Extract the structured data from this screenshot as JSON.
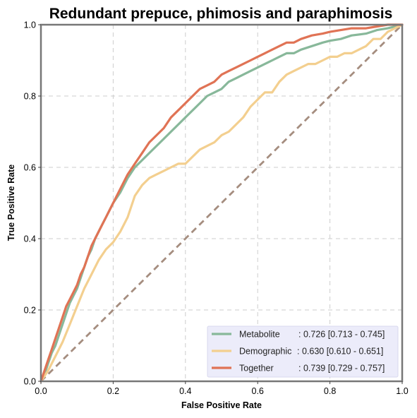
{
  "chart_data": {
    "type": "line",
    "title": "Redundant prepuce, phimosis and paraphimosis",
    "xlabel": "False Positive Rate",
    "ylabel": "True Positive Rate",
    "xlim": [
      0,
      1
    ],
    "ylim": [
      0,
      1
    ],
    "xticks": [
      "0.0",
      "0.2",
      "0.4",
      "0.6",
      "0.8",
      "1.0"
    ],
    "yticks": [
      "0.0",
      "0.2",
      "0.4",
      "0.6",
      "0.8",
      "1.0"
    ],
    "grid": true,
    "legend_position": "bottom-right",
    "series": [
      {
        "name": "Metabolite",
        "auc_label": ": 0.726 [0.713 - 0.745]",
        "color": "#88b89a",
        "x": [
          0,
          0.01,
          0.02,
          0.03,
          0.04,
          0.05,
          0.06,
          0.07,
          0.08,
          0.09,
          0.1,
          0.11,
          0.12,
          0.13,
          0.14,
          0.15,
          0.16,
          0.17,
          0.18,
          0.19,
          0.2,
          0.22,
          0.24,
          0.26,
          0.28,
          0.3,
          0.32,
          0.34,
          0.36,
          0.38,
          0.4,
          0.42,
          0.44,
          0.46,
          0.48,
          0.5,
          0.52,
          0.54,
          0.56,
          0.58,
          0.6,
          0.62,
          0.64,
          0.66,
          0.68,
          0.7,
          0.72,
          0.75,
          0.78,
          0.8,
          0.83,
          0.86,
          0.9,
          0.93,
          0.96,
          1.0
        ],
        "y": [
          0,
          0.02,
          0.05,
          0.08,
          0.1,
          0.13,
          0.16,
          0.19,
          0.22,
          0.24,
          0.26,
          0.29,
          0.32,
          0.35,
          0.37,
          0.4,
          0.42,
          0.44,
          0.46,
          0.48,
          0.5,
          0.53,
          0.57,
          0.6,
          0.62,
          0.64,
          0.66,
          0.68,
          0.7,
          0.72,
          0.74,
          0.76,
          0.78,
          0.8,
          0.81,
          0.82,
          0.84,
          0.85,
          0.86,
          0.87,
          0.88,
          0.89,
          0.9,
          0.91,
          0.92,
          0.92,
          0.93,
          0.94,
          0.95,
          0.955,
          0.96,
          0.97,
          0.975,
          0.985,
          0.99,
          1.0
        ]
      },
      {
        "name": "Demographic",
        "auc_label": ": 0.630 [0.610 - 0.651]",
        "color": "#f3cf8f",
        "x": [
          0,
          0.02,
          0.04,
          0.06,
          0.08,
          0.1,
          0.12,
          0.14,
          0.16,
          0.18,
          0.2,
          0.22,
          0.24,
          0.26,
          0.28,
          0.3,
          0.32,
          0.34,
          0.36,
          0.38,
          0.4,
          0.42,
          0.44,
          0.46,
          0.48,
          0.5,
          0.52,
          0.54,
          0.56,
          0.58,
          0.6,
          0.62,
          0.64,
          0.66,
          0.68,
          0.7,
          0.72,
          0.74,
          0.76,
          0.78,
          0.8,
          0.82,
          0.84,
          0.86,
          0.88,
          0.9,
          0.92,
          0.94,
          0.96,
          0.98,
          1.0
        ],
        "y": [
          0,
          0.03,
          0.07,
          0.11,
          0.16,
          0.21,
          0.26,
          0.3,
          0.34,
          0.37,
          0.39,
          0.42,
          0.46,
          0.52,
          0.55,
          0.57,
          0.58,
          0.59,
          0.6,
          0.61,
          0.61,
          0.63,
          0.65,
          0.66,
          0.67,
          0.69,
          0.7,
          0.72,
          0.74,
          0.77,
          0.79,
          0.81,
          0.81,
          0.84,
          0.86,
          0.87,
          0.88,
          0.89,
          0.89,
          0.9,
          0.91,
          0.91,
          0.92,
          0.92,
          0.93,
          0.94,
          0.96,
          0.96,
          0.98,
          0.99,
          1.0
        ]
      },
      {
        "name": "Together",
        "auc_label": ": 0.739 [0.729 - 0.757]",
        "color": "#e07355",
        "x": [
          0,
          0.01,
          0.02,
          0.03,
          0.04,
          0.05,
          0.06,
          0.07,
          0.08,
          0.09,
          0.1,
          0.11,
          0.12,
          0.13,
          0.14,
          0.15,
          0.16,
          0.17,
          0.18,
          0.19,
          0.2,
          0.22,
          0.24,
          0.26,
          0.28,
          0.3,
          0.32,
          0.34,
          0.36,
          0.38,
          0.4,
          0.42,
          0.44,
          0.46,
          0.48,
          0.5,
          0.52,
          0.54,
          0.56,
          0.58,
          0.6,
          0.62,
          0.64,
          0.66,
          0.68,
          0.7,
          0.72,
          0.75,
          0.78,
          0.8,
          0.83,
          0.86,
          0.9,
          0.93,
          0.96,
          1.0
        ],
        "y": [
          0,
          0.03,
          0.06,
          0.09,
          0.12,
          0.15,
          0.18,
          0.21,
          0.23,
          0.25,
          0.27,
          0.3,
          0.32,
          0.35,
          0.38,
          0.4,
          0.42,
          0.44,
          0.46,
          0.48,
          0.5,
          0.54,
          0.58,
          0.61,
          0.64,
          0.67,
          0.69,
          0.71,
          0.74,
          0.76,
          0.78,
          0.8,
          0.82,
          0.83,
          0.84,
          0.86,
          0.87,
          0.88,
          0.89,
          0.9,
          0.91,
          0.92,
          0.93,
          0.94,
          0.95,
          0.95,
          0.96,
          0.97,
          0.975,
          0.98,
          0.985,
          0.99,
          0.99,
          0.995,
          1.0,
          1.0
        ]
      }
    ],
    "reference_line": {
      "x": [
        0,
        1
      ],
      "y": [
        0,
        1
      ],
      "color": "#a58d7f",
      "style": "dashed"
    }
  }
}
